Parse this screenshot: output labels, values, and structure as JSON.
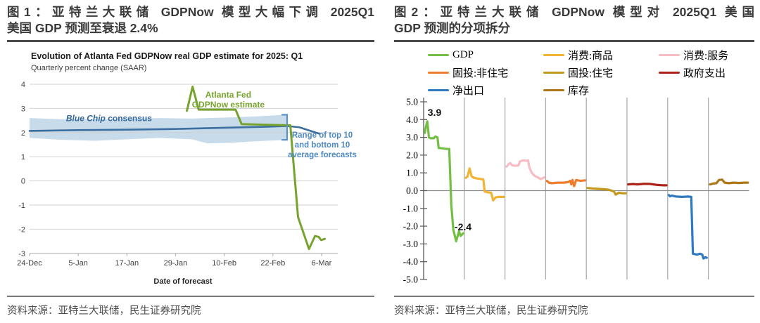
{
  "figure1": {
    "title_line1": "图1：亚特兰大联储 GDPNow 模型大幅下调 2025Q1",
    "title_line2": "美国 GDP 预测至衰退 2.4%",
    "source": "资料来源：亚特兰大联储，民生证券研究院"
  },
  "figure2": {
    "title_line1": "图2：亚特兰大联储 GDPNow 模型对 2025Q1 美国",
    "title_line2": "GDP 预测的分项拆分",
    "source": "资料来源：亚特兰大联储，民生证券研究院"
  },
  "chart_data": [
    {
      "type": "line",
      "title": "Evolution of Atlanta Fed GDPNow real GDP estimate for 2025: Q1",
      "subtitle": "Quarterly percent change (SAAR)",
      "xlabel": "Date of forecast",
      "x_tick_labels": [
        "24-Dec",
        "5-Jan",
        "17-Jan",
        "29-Jan",
        "10-Feb",
        "22-Feb",
        "6-Mar"
      ],
      "x_tick_days": [
        0,
        12,
        24,
        36,
        48,
        60,
        72
      ],
      "x_range": [
        0,
        76
      ],
      "ylim": [
        -3,
        4
      ],
      "y_ticks": [
        4,
        3,
        2,
        1,
        0,
        -1,
        -2,
        -3
      ],
      "grid": true,
      "series": [
        {
          "id": "gdpnow-estimate",
          "name": "Atlanta Fed GDPNow estimate",
          "color": "#76a32d",
          "points": [
            [
              38.8,
              2.9
            ],
            [
              40.2,
              3.9
            ],
            [
              41.7,
              2.95
            ],
            [
              50.8,
              2.95
            ],
            [
              52.3,
              2.35
            ],
            [
              64.3,
              2.3
            ],
            [
              66.2,
              -1.5
            ],
            [
              68.9,
              -2.82
            ],
            [
              70.4,
              -2.28
            ],
            [
              71.3,
              -2.32
            ],
            [
              71.9,
              -2.45
            ],
            [
              72.8,
              -2.4
            ]
          ]
        },
        {
          "id": "blue-chip-consensus",
          "name": "Blue Chip consensus",
          "color": "#3c6e9f",
          "points": [
            [
              0,
              2.07
            ],
            [
              12,
              2.1
            ],
            [
              24,
              2.12
            ],
            [
              36,
              2.15
            ],
            [
              48,
              2.2
            ],
            [
              58,
              2.24
            ],
            [
              63.5,
              2.27
            ],
            [
              66.5,
              2.22
            ],
            [
              71.5,
              1.95
            ]
          ]
        }
      ],
      "band": {
        "id": "forecast-range-band",
        "name": "Range of top 10 and bottom 10 average forecasts",
        "color": "#c7dbeb",
        "points": [
          [
            0,
            2.6,
            1.78
          ],
          [
            8,
            2.55,
            1.7
          ],
          [
            16,
            2.55,
            1.66
          ],
          [
            24,
            2.57,
            1.72
          ],
          [
            32,
            2.6,
            1.78
          ],
          [
            40,
            2.58,
            1.72
          ],
          [
            44,
            2.6,
            1.55
          ],
          [
            50,
            2.63,
            1.58
          ],
          [
            56,
            2.67,
            1.64
          ],
          [
            63.5,
            2.74,
            1.7
          ]
        ]
      },
      "annotations": {
        "estimate_label": [
          "Atlanta Fed",
          "GDPNow estimate"
        ],
        "consensus_label": {
          "italic": "Blue Chip",
          "rest": " consensus"
        },
        "range_label": [
          "Range of top 10",
          "and bottom 10",
          "average forecasts"
        ],
        "bracket": {
          "x": 63.5,
          "top": 2.74,
          "bottom": 1.7
        }
      }
    },
    {
      "type": "line",
      "ylim": [
        -5,
        5
      ],
      "y_tick_values": [
        5,
        4,
        3,
        2,
        1,
        0,
        -1,
        -2,
        -3,
        -4,
        -5
      ],
      "y_tick_labels": [
        "5.0",
        "4.0",
        "3.0",
        "2.0",
        "1.0",
        "0.0",
        "-1.0",
        "-2.0",
        "-3.0",
        "-4.0",
        "-5.0"
      ],
      "grid": true,
      "segments": [
        {
          "id": "gdp",
          "name": "GDP",
          "color": "#72bf44",
          "points": [
            [
              0.03,
              3.25
            ],
            [
              0.05,
              3.55
            ],
            [
              0.09,
              3.9
            ],
            [
              0.13,
              3.0
            ],
            [
              0.17,
              2.95
            ],
            [
              0.25,
              2.95
            ],
            [
              0.29,
              3.05
            ],
            [
              0.34,
              3.0
            ],
            [
              0.37,
              2.4
            ],
            [
              0.4,
              2.4
            ],
            [
              0.56,
              2.35
            ],
            [
              0.63,
              2.35
            ],
            [
              0.68,
              -0.8
            ],
            [
              0.73,
              -2.2
            ],
            [
              0.8,
              -2.85
            ],
            [
              0.87,
              -2.28
            ],
            [
              0.91,
              -2.55
            ],
            [
              0.95,
              -2.45
            ],
            [
              0.98,
              -2.4
            ]
          ]
        },
        {
          "id": "consumption-goods",
          "name": "消费:商品",
          "color": "#f2b234",
          "points": [
            [
              0.04,
              0.72
            ],
            [
              0.08,
              0.8
            ],
            [
              0.13,
              1.25
            ],
            [
              0.18,
              0.8
            ],
            [
              0.24,
              0.72
            ],
            [
              0.33,
              0.68
            ],
            [
              0.42,
              0.65
            ],
            [
              0.47,
              0.62
            ],
            [
              0.5,
              -0.05
            ],
            [
              0.6,
              -0.1
            ],
            [
              0.66,
              -0.12
            ],
            [
              0.71,
              -0.55
            ],
            [
              0.77,
              -0.38
            ],
            [
              0.85,
              -0.35
            ],
            [
              0.97,
              -0.35
            ]
          ]
        },
        {
          "id": "consumption-services",
          "name": "消费:服务",
          "color": "#f7bcc4",
          "points": [
            [
              0.04,
              1.35
            ],
            [
              0.09,
              1.5
            ],
            [
              0.13,
              1.55
            ],
            [
              0.18,
              1.42
            ],
            [
              0.26,
              1.4
            ],
            [
              0.33,
              1.42
            ],
            [
              0.37,
              1.65
            ],
            [
              0.44,
              1.7
            ],
            [
              0.52,
              1.68
            ],
            [
              0.57,
              1.7
            ],
            [
              0.6,
              1.3
            ],
            [
              0.66,
              1.0
            ],
            [
              0.72,
              0.85
            ],
            [
              0.8,
              0.75
            ],
            [
              0.88,
              0.65
            ],
            [
              0.97,
              0.75
            ]
          ]
        },
        {
          "id": "fixed-investment-nonresidential",
          "name": "固投:非住宅",
          "color": "#ee7d2e",
          "points": [
            [
              0.03,
              0.55
            ],
            [
              0.08,
              0.45
            ],
            [
              0.15,
              0.42
            ],
            [
              0.3,
              0.45
            ],
            [
              0.45,
              0.45
            ],
            [
              0.55,
              0.48
            ],
            [
              0.6,
              0.55
            ],
            [
              0.63,
              0.35
            ],
            [
              0.66,
              0.6
            ],
            [
              0.7,
              0.25
            ],
            [
              0.75,
              0.6
            ],
            [
              0.85,
              0.55
            ],
            [
              0.97,
              0.58
            ]
          ]
        },
        {
          "id": "fixed-investment-residential",
          "name": "固投:住宅",
          "color": "#c2991c",
          "points": [
            [
              0.03,
              0.15
            ],
            [
              0.15,
              0.12
            ],
            [
              0.3,
              0.1
            ],
            [
              0.45,
              0.08
            ],
            [
              0.55,
              0.05
            ],
            [
              0.62,
              0.0
            ],
            [
              0.68,
              -0.05
            ],
            [
              0.72,
              -0.22
            ],
            [
              0.8,
              -0.12
            ],
            [
              0.9,
              -0.15
            ],
            [
              0.97,
              -0.15
            ]
          ]
        },
        {
          "id": "government-spending",
          "name": "政府支出",
          "color": "#ae2318",
          "points": [
            [
              0.03,
              0.35
            ],
            [
              0.15,
              0.37
            ],
            [
              0.25,
              0.35
            ],
            [
              0.4,
              0.38
            ],
            [
              0.55,
              0.38
            ],
            [
              0.65,
              0.35
            ],
            [
              0.75,
              0.32
            ],
            [
              0.9,
              0.3
            ],
            [
              0.97,
              0.3
            ]
          ]
        },
        {
          "id": "net-exports",
          "name": "净出口",
          "color": "#2e79c0",
          "points": [
            [
              0.03,
              -0.25
            ],
            [
              0.06,
              -0.32
            ],
            [
              0.1,
              -0.28
            ],
            [
              0.2,
              -0.33
            ],
            [
              0.35,
              -0.35
            ],
            [
              0.5,
              -0.33
            ],
            [
              0.58,
              -0.35
            ],
            [
              0.62,
              -3.55
            ],
            [
              0.72,
              -3.6
            ],
            [
              0.8,
              -3.55
            ],
            [
              0.85,
              -3.6
            ],
            [
              0.88,
              -3.82
            ],
            [
              0.93,
              -3.75
            ],
            [
              0.96,
              -3.78
            ]
          ]
        },
        {
          "id": "inventories",
          "name": "库存",
          "color": "#ad7717",
          "points": [
            [
              0.04,
              0.35
            ],
            [
              0.12,
              0.4
            ],
            [
              0.2,
              0.42
            ],
            [
              0.26,
              0.6
            ],
            [
              0.34,
              0.62
            ],
            [
              0.4,
              0.45
            ],
            [
              0.5,
              0.42
            ],
            [
              0.62,
              0.45
            ],
            [
              0.75,
              0.43
            ],
            [
              0.88,
              0.45
            ],
            [
              0.97,
              0.45
            ]
          ]
        }
      ],
      "point_labels": [
        {
          "text": "3.9",
          "seg": 0,
          "t": 0.1,
          "value": 4.2
        },
        {
          "text": "-2.4",
          "seg": 0,
          "t": 0.76,
          "value": -2.23
        }
      ],
      "legend_position": "top"
    }
  ]
}
